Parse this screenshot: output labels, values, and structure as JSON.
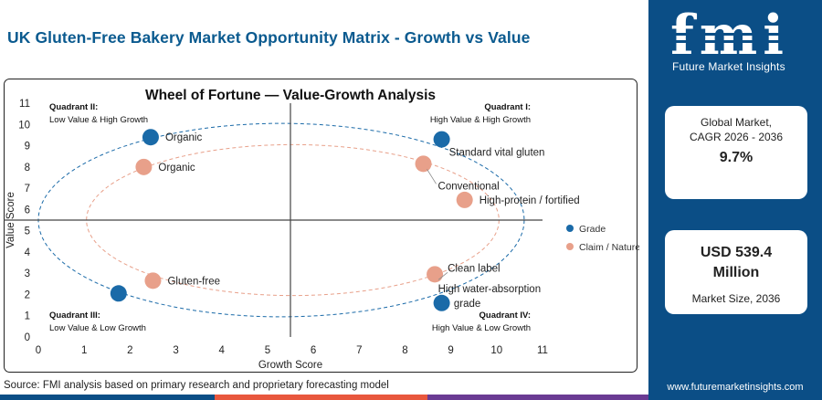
{
  "page_title": "UK Gluten-Free Bakery Market Opportunity Matrix - Growth vs Value",
  "source": "Source: FMI analysis based on primary research and proprietary forecasting model",
  "brand": {
    "logo_text": "fmi",
    "logo_subtitle": "Future Market Insights",
    "url": "www.futuremarketinsights.com",
    "panel_color": "#0b4e86"
  },
  "kpis": {
    "cagr_label_line1": "Global Market,",
    "cagr_label_line2": "CAGR 2026 - 2036",
    "cagr_value": "9.7%",
    "size_value_line1": "USD 539.4",
    "size_value_line2": "Million",
    "size_label": "Market Size, 2036"
  },
  "chart_data": {
    "type": "scatter",
    "title": "Wheel of Fortune — Value-Growth Analysis",
    "xlabel": "Growth Score",
    "ylabel": "Value Score",
    "xlim": [
      0,
      11
    ],
    "ylim": [
      0,
      11
    ],
    "xticks": [
      0,
      1,
      2,
      3,
      4,
      5,
      6,
      7,
      8,
      9,
      10,
      11
    ],
    "yticks": [
      0,
      1,
      2,
      3,
      4,
      5,
      6,
      7,
      8,
      9,
      10,
      11
    ],
    "divider": {
      "x": 5.5,
      "y": 5.5
    },
    "grid": false,
    "legend_position": "right",
    "quadrants": [
      {
        "title": "Quadrant II:",
        "subtitle": "Low Value & High Growth",
        "corner": "top-left"
      },
      {
        "title": "Quadrant I:",
        "subtitle": "High Value & High Growth",
        "corner": "top-right"
      },
      {
        "title": "Quadrant III:",
        "subtitle": "Low Value & Low Growth",
        "corner": "bottom-left"
      },
      {
        "title": "Quadrant IV:",
        "subtitle": "High Value & Low Growth",
        "corner": "bottom-right"
      }
    ],
    "series": [
      {
        "name": "Grade",
        "color": "#1a6aa8",
        "ellipse": {
          "cx": 5.3,
          "cy": 5.5,
          "rx": 5.3,
          "ry": 4.55
        },
        "points": [
          {
            "label": "Organic",
            "x": 2.45,
            "y": 9.4
          },
          {
            "label": "Standard vital gluten",
            "x": 8.8,
            "y": 9.3
          },
          {
            "label": "High water-absorption grade",
            "x": 8.8,
            "y": 1.6
          },
          {
            "label": "",
            "x": 1.75,
            "y": 2.05
          }
        ]
      },
      {
        "name": "Claim / Nature",
        "color": "#e8a08a",
        "ellipse": {
          "cx": 5.55,
          "cy": 5.5,
          "rx": 4.5,
          "ry": 3.55
        },
        "points": [
          {
            "label": "Organic",
            "x": 2.3,
            "y": 8.0
          },
          {
            "label": "Conventional",
            "x": 8.4,
            "y": 8.15
          },
          {
            "label": "High-protein / fortified",
            "x": 9.3,
            "y": 6.45
          },
          {
            "label": "Clean label",
            "x": 8.65,
            "y": 2.95
          },
          {
            "label": "Gluten-free",
            "x": 2.5,
            "y": 2.65
          }
        ]
      }
    ]
  }
}
